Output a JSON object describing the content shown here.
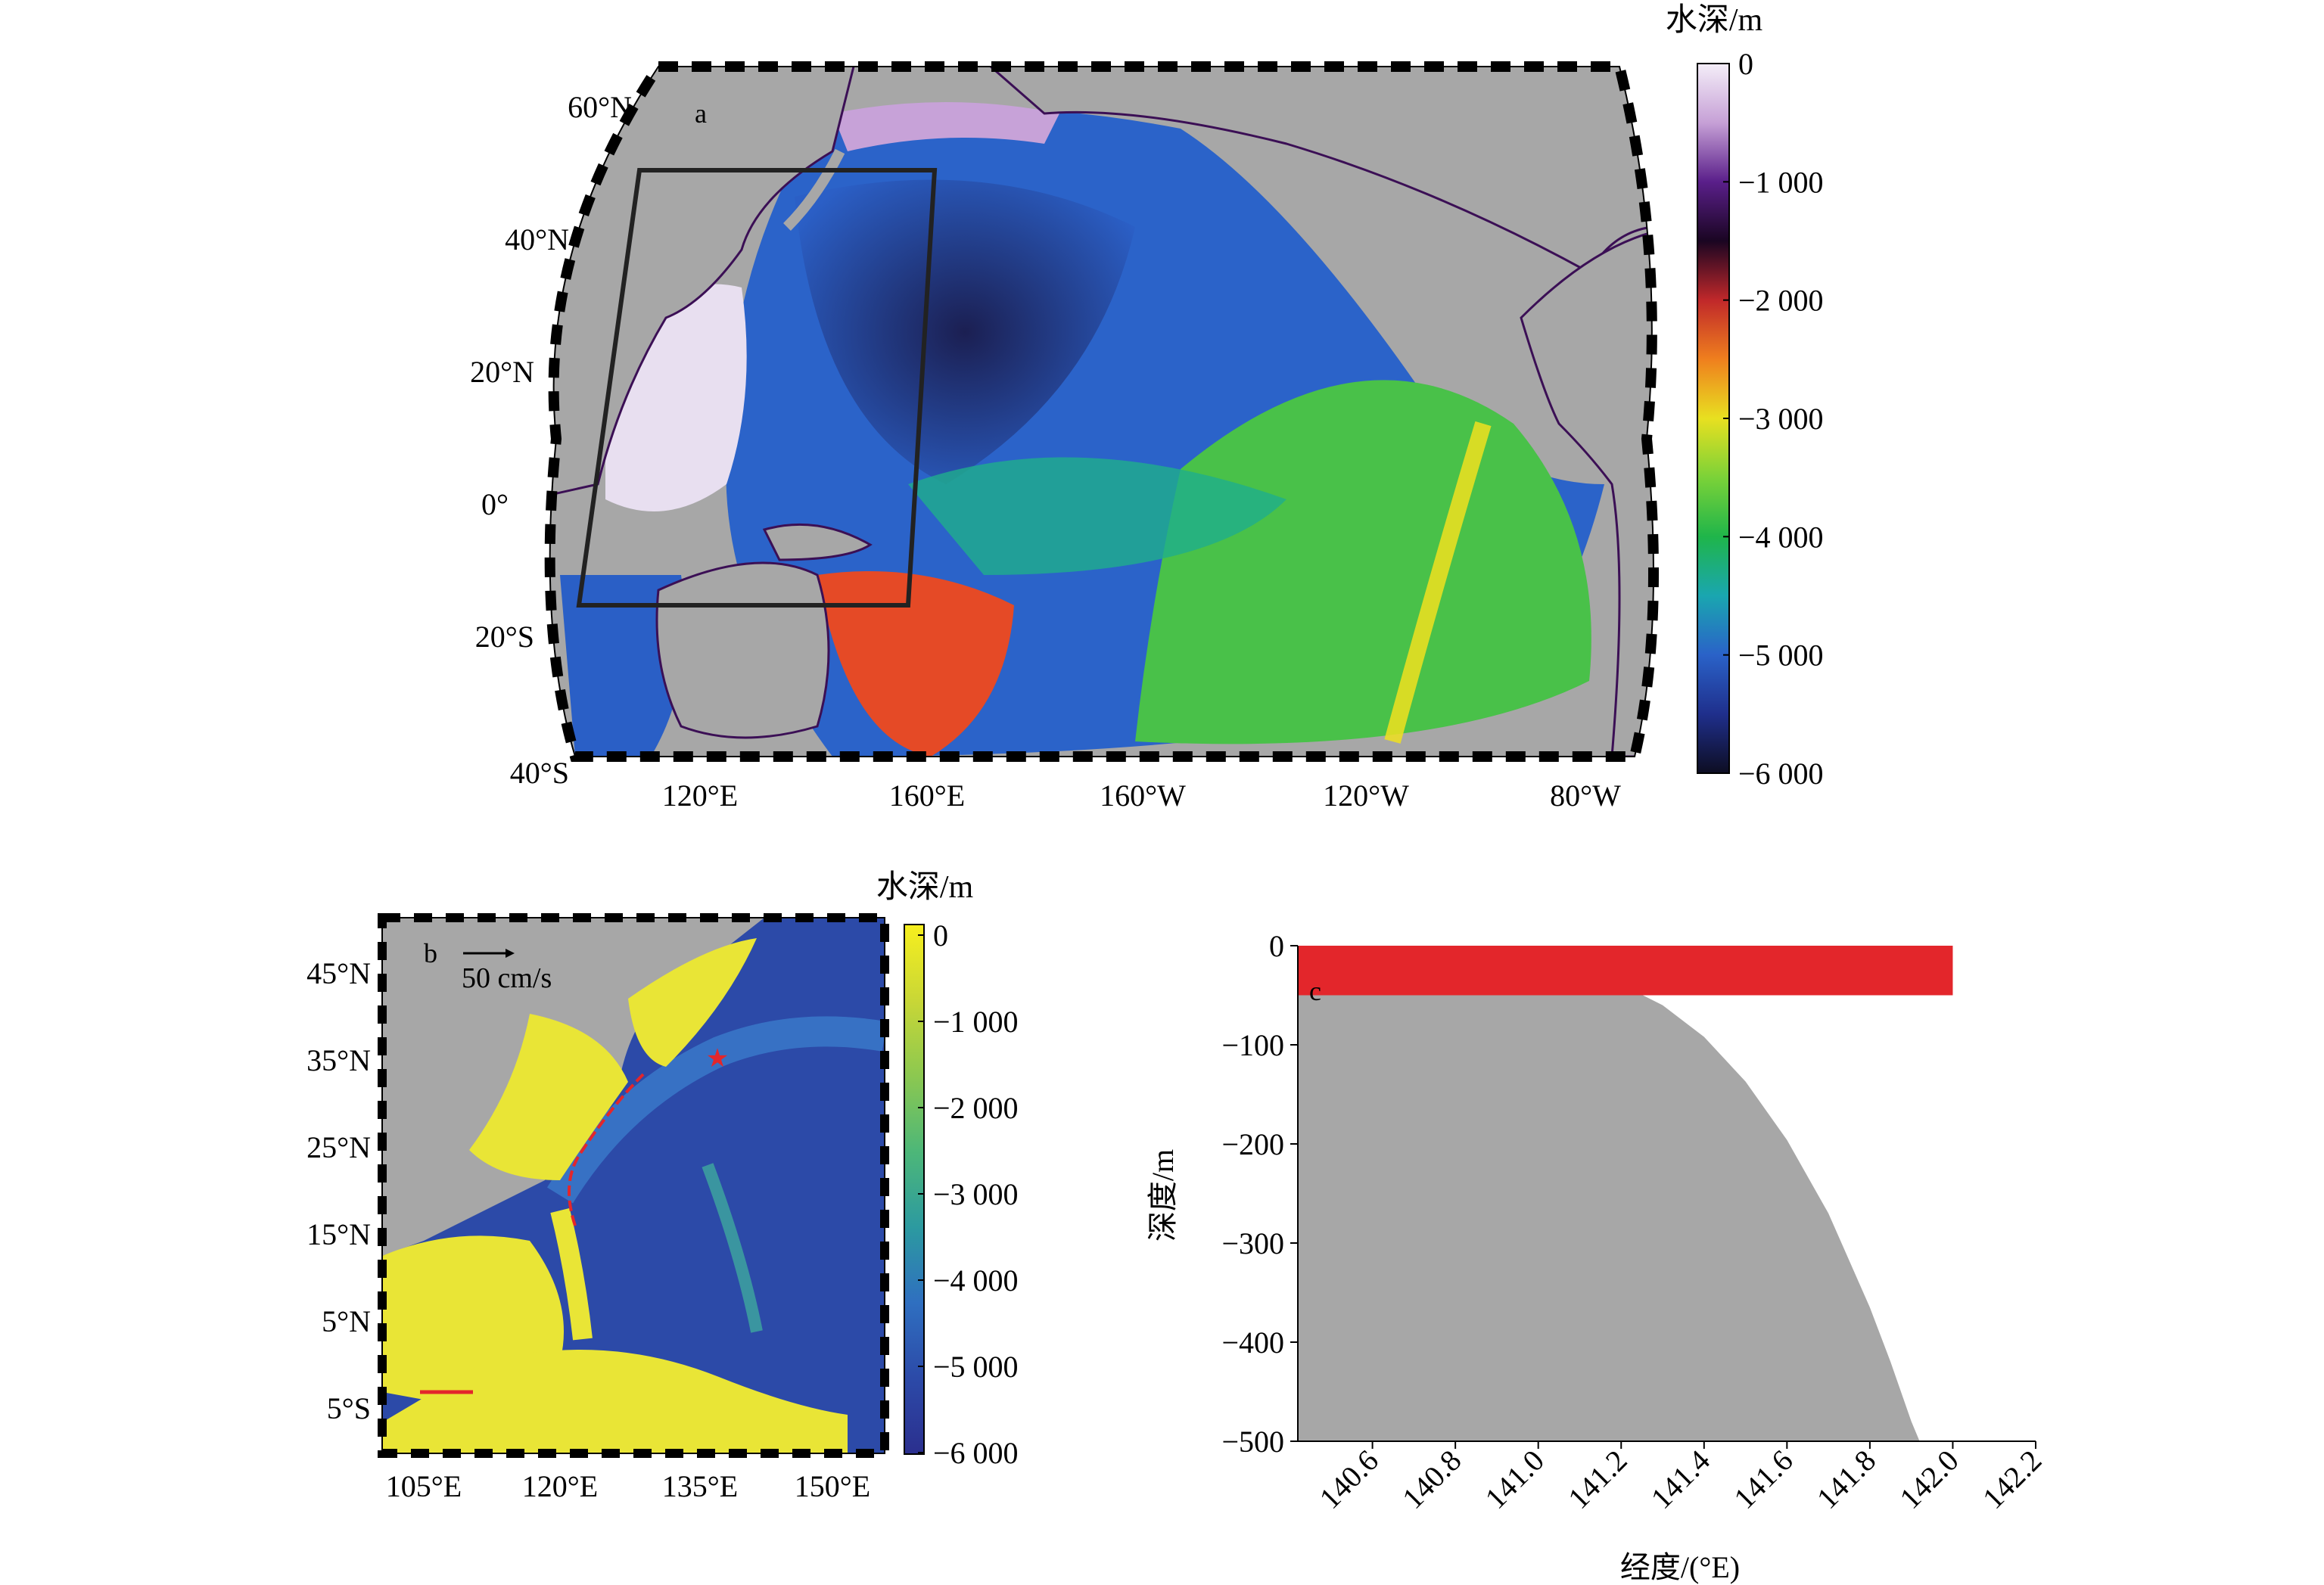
{
  "panel_a": {
    "label": "a",
    "lat_labels": [
      "60°N",
      "40°N",
      "20°N",
      "0°",
      "20°S",
      "40°S"
    ],
    "lon_labels": [
      "120°E",
      "160°E",
      "160°W",
      "120°W",
      "80°W"
    ],
    "colorbar": {
      "title": "水深/m",
      "ticks": [
        "0",
        "−1 000",
        "−2 000",
        "−3 000",
        "−4 000",
        "−5 000",
        "−6 000"
      ],
      "colors": [
        "#f4eef8",
        "#c6a0d6",
        "#5a1f8a",
        "#1a0522",
        "#c0282a",
        "#ef7f1e",
        "#e8e020",
        "#7bd238",
        "#1fb54a",
        "#1aa6b0",
        "#2a62c8",
        "#1f2f8c",
        "#0d0d22"
      ]
    }
  },
  "panel_b": {
    "label": "b",
    "scale_text": "50 cm/s",
    "lat_labels": [
      "45°N",
      "35°N",
      "25°N",
      "15°N",
      "5°N",
      "5°S"
    ],
    "lon_labels": [
      "105°E",
      "120°E",
      "135°E",
      "150°E"
    ],
    "colorbar": {
      "title": "水深/m",
      "ticks": [
        "0",
        "−1 000",
        "−2 000",
        "−3 000",
        "−4 000",
        "−5 000",
        "−6 000"
      ],
      "colors": [
        "#f7ef1e",
        "#c9d736",
        "#8cc850",
        "#4db778",
        "#2c9aa0",
        "#2f6fc0",
        "#2c4aa8",
        "#2b2f8e"
      ]
    }
  },
  "panel_c": {
    "label": "c",
    "xlabel": "经度/(°E)",
    "ylabel": "深度/m",
    "xticks": [
      "140.6",
      "140.8",
      "141.0",
      "141.2",
      "141.4",
      "141.6",
      "141.8",
      "142.0",
      "142.2"
    ],
    "yticks": [
      "0",
      "−100",
      "−200",
      "−300",
      "−400",
      "−500"
    ]
  },
  "chart_data": {
    "type": "area",
    "xlabel": "经度/(°E)",
    "ylabel": "深度/m",
    "xlim": [
      140.42,
      142.2
    ],
    "ylim": [
      -500,
      0
    ],
    "grid": false,
    "series": [
      {
        "x": [
          140.42,
          140.5,
          140.6,
          140.7,
          140.8,
          140.9,
          141.0,
          141.1,
          141.2,
          141.3,
          141.4,
          141.5,
          141.6,
          141.7,
          141.8,
          141.85,
          141.9,
          141.92
        ],
        "values": [
          -1,
          -2,
          -3,
          -5,
          -7,
          -11,
          -17,
          -26,
          -39,
          -60,
          -92,
          -137,
          -196,
          -270,
          -365,
          -420,
          -480,
          -500
        ]
      }
    ],
    "shaded_band": {
      "x": [
        140.42,
        142.0
      ],
      "y": [
        -50,
        0
      ],
      "color": "#e3262b"
    },
    "fill_color": "#a7a7a7"
  }
}
